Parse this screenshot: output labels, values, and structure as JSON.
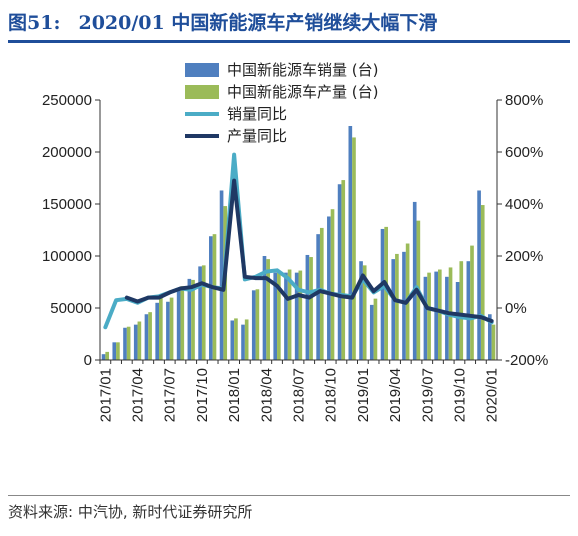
{
  "header": {
    "fig_label": "图51:",
    "title": "2020/01 中国新能源车产销继续大幅下滑"
  },
  "footer": {
    "source": "资料来源: 中汽协, 新时代证券研究所"
  },
  "colors": {
    "sales_bar": "#4f7fbf",
    "production_bar": "#9bbb59",
    "sales_yoy_line": "#4bacc6",
    "production_yoy_line": "#1f3864",
    "title": "#1f4e9a"
  },
  "chart_data": {
    "type": "bar",
    "categories": [
      "2017/01",
      "2017/02",
      "2017/03",
      "2017/04",
      "2017/05",
      "2017/06",
      "2017/07",
      "2017/08",
      "2017/09",
      "2017/10",
      "2017/11",
      "2017/12",
      "2018/01",
      "2018/02",
      "2018/03",
      "2018/04",
      "2018/05",
      "2018/06",
      "2018/07",
      "2018/08",
      "2018/09",
      "2018/10",
      "2018/11",
      "2018/12",
      "2019/01",
      "2019/02",
      "2019/03",
      "2019/04",
      "2019/05",
      "2019/06",
      "2019/07",
      "2019/08",
      "2019/09",
      "2019/10",
      "2019/11",
      "2019/12",
      "2020/01"
    ],
    "x_tick_labels": [
      "2017/01",
      "2017/04",
      "2017/07",
      "2017/10",
      "2018/01",
      "2018/04",
      "2018/07",
      "2018/10",
      "2019/01",
      "2019/04",
      "2019/07",
      "2019/10",
      "2020/01"
    ],
    "series": [
      {
        "name": "中国新能源车销量 (台)",
        "kind": "bar",
        "axis": "left",
        "values": [
          5600,
          17000,
          31000,
          34000,
          44000,
          55000,
          56000,
          68000,
          78000,
          90000,
          119000,
          163000,
          38000,
          34000,
          67000,
          100000,
          84000,
          84000,
          84000,
          101000,
          121000,
          138000,
          169000,
          225000,
          95000,
          53000,
          126000,
          97000,
          104000,
          152000,
          80000,
          85000,
          80000,
          75000,
          95000,
          163000,
          44000
        ]
      },
      {
        "name": "中国新能源车产量 (台)",
        "kind": "bar",
        "axis": "left",
        "values": [
          7800,
          17000,
          32000,
          37000,
          46000,
          61000,
          60000,
          71000,
          77000,
          91000,
          121000,
          148000,
          40000,
          39000,
          68000,
          97000,
          86000,
          87000,
          86000,
          99000,
          127000,
          145000,
          173000,
          214000,
          91000,
          59000,
          128000,
          102000,
          112000,
          134000,
          84000,
          87000,
          89000,
          95000,
          110000,
          149000,
          34000
        ]
      },
      {
        "name": "销量同比",
        "kind": "line",
        "axis": "right",
        "values": [
          -74,
          30,
          35,
          20,
          40,
          45,
          60,
          75,
          70,
          90,
          80,
          75,
          590,
          110,
          120,
          140,
          145,
          115,
          70,
          60,
          70,
          55,
          50,
          45,
          110,
          60,
          85,
          30,
          20,
          80,
          0,
          -10,
          -25,
          -35,
          -40,
          -30,
          -55
        ]
      },
      {
        "name": "产量同比",
        "kind": "line",
        "axis": "right",
        "values": [
          null,
          null,
          40,
          25,
          40,
          40,
          60,
          75,
          80,
          95,
          80,
          70,
          490,
          120,
          115,
          115,
          85,
          35,
          50,
          40,
          65,
          55,
          45,
          40,
          125,
          65,
          100,
          30,
          20,
          70,
          0,
          -10,
          -20,
          -25,
          -30,
          -35,
          -50
        ]
      }
    ],
    "y_left": {
      "min": 0,
      "max": 250000,
      "ticks": [
        "0",
        "50000",
        "100000",
        "150000",
        "200000",
        "250000"
      ]
    },
    "y_right": {
      "min": -200,
      "max": 800,
      "ticks": [
        "-200%",
        "0%",
        "200%",
        "400%",
        "600%",
        "800%"
      ]
    },
    "grid": false,
    "legend_position": "top-center"
  }
}
